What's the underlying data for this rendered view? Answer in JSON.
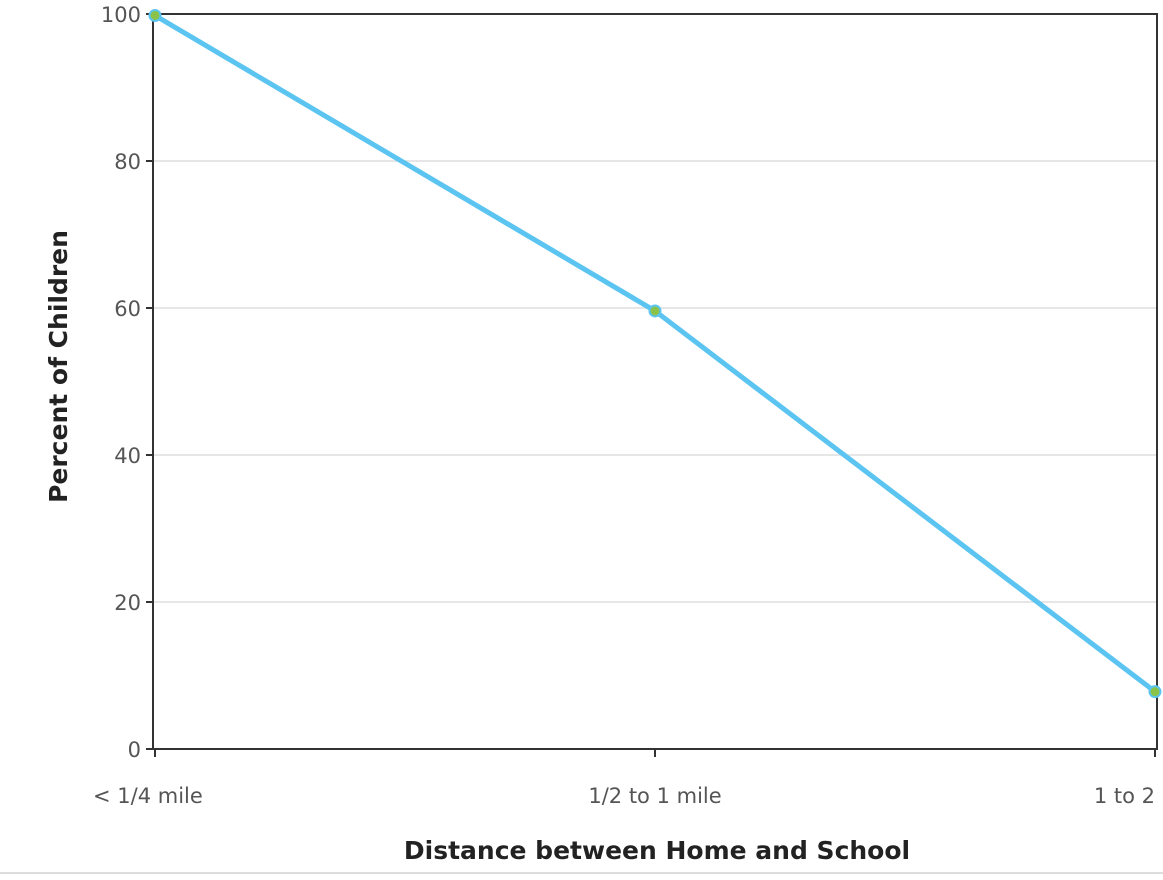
{
  "chart_data": {
    "type": "line",
    "title": "",
    "xlabel": "Distance between Home and School",
    "ylabel": "Percent of Children",
    "categories": [
      "< 1/4 mile",
      "1/2 to 1 mile",
      "1 to 2"
    ],
    "series": [
      {
        "values": [
          99.8,
          59.6,
          7.8
        ],
        "color": "#5bc4f1",
        "marker_color": "#8bc34a"
      }
    ],
    "ylim": [
      0,
      100
    ],
    "yticks": [
      0,
      20,
      40,
      60,
      80,
      100
    ],
    "grid": "horizontal",
    "legend": "none"
  }
}
